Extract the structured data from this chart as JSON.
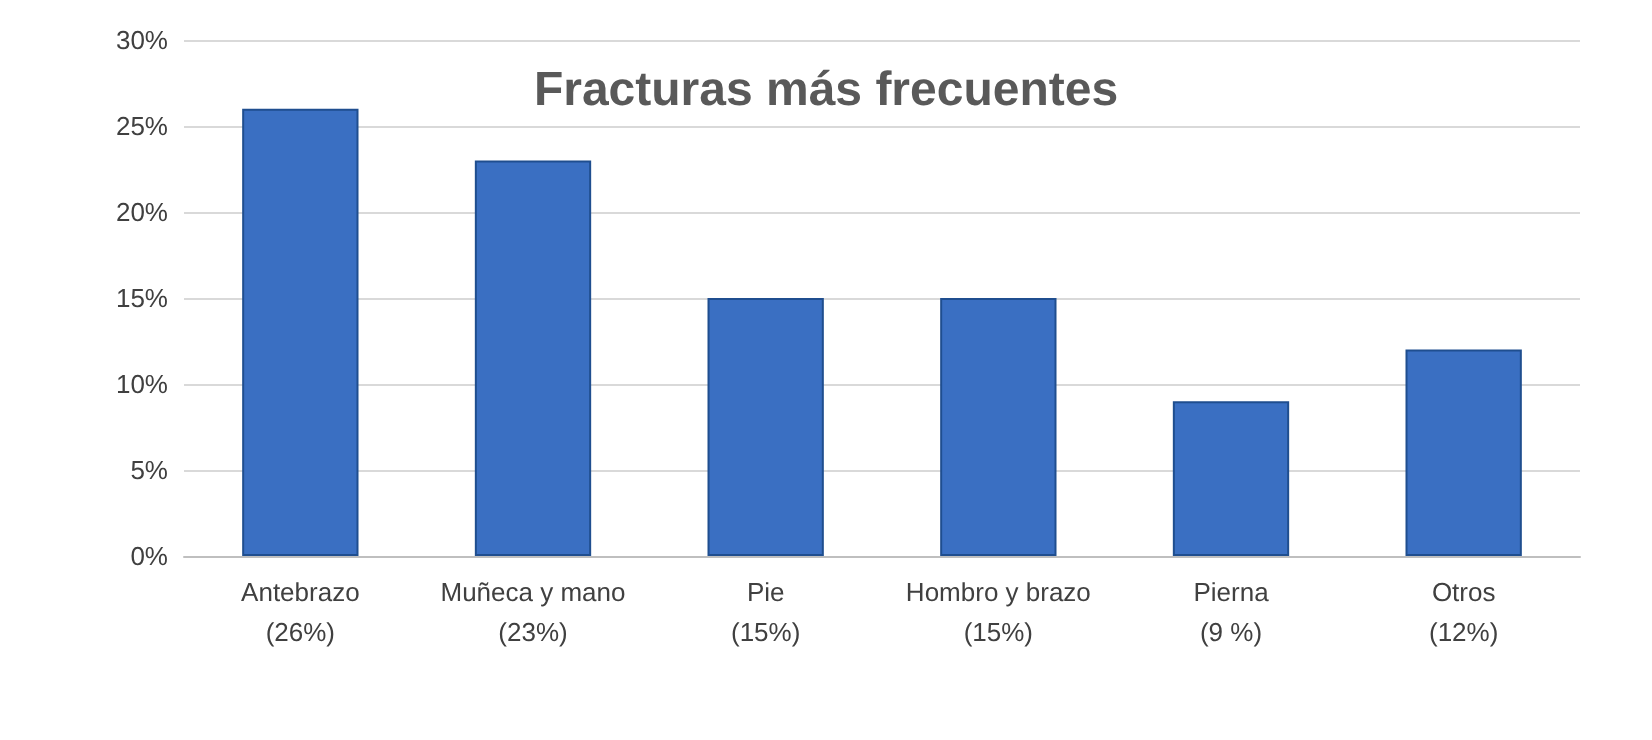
{
  "chart_data": {
    "type": "bar",
    "title": "Fracturas más frecuentes",
    "categories": [
      "Antebrazo\n(26%)",
      "Muñeca y mano\n(23%)",
      "Pie\n(15%)",
      "Hombro y brazo\n(15%)",
      "Pierna\n(9 %)",
      "Otros\n(12%)"
    ],
    "values": [
      26,
      23,
      15,
      15,
      9,
      12
    ],
    "color": "#3a6fc2",
    "ylim": [
      0,
      30
    ],
    "yticks": [
      {
        "value": 0,
        "label": "0%"
      },
      {
        "value": 5,
        "label": "5%"
      },
      {
        "value": 10,
        "label": "10%"
      },
      {
        "value": 15,
        "label": "15%"
      },
      {
        "value": 20,
        "label": "20%"
      },
      {
        "value": 25,
        "label": "25%"
      },
      {
        "value": 30,
        "label": "30%"
      }
    ],
    "grid": "y"
  }
}
